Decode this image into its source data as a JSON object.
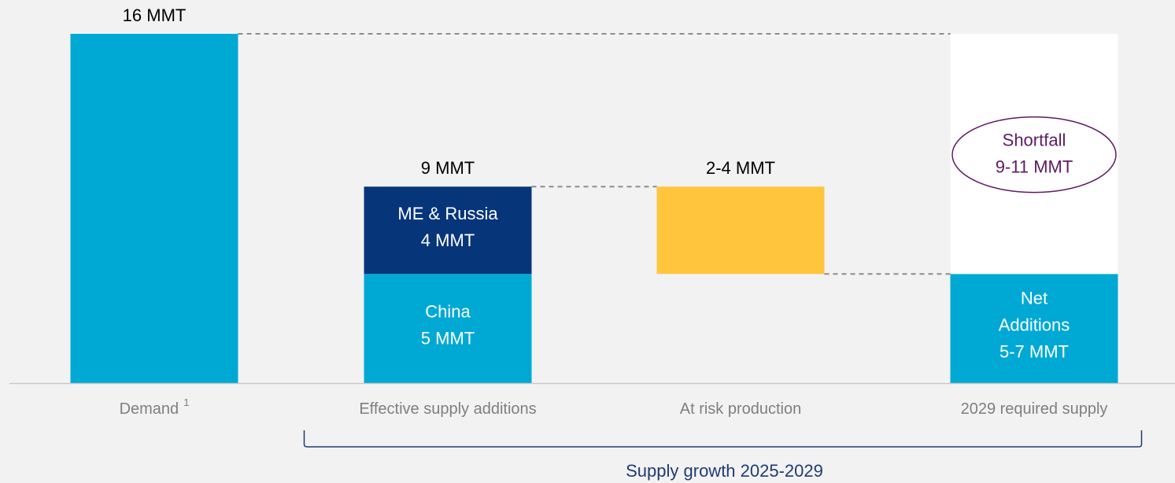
{
  "chart_data": {
    "type": "waterfall",
    "categories": [
      "Demand",
      "Effective supply additions",
      "At risk production",
      "2029 required supply"
    ],
    "footnote": "1",
    "bars": [
      {
        "start": "zero",
        "total_label": "16 MMT",
        "segments": [
          {
            "value": 16,
            "color": "#00a9d4"
          }
        ]
      },
      {
        "start": "zero",
        "total_label": "9 MMT",
        "segments": [
          {
            "value": 5,
            "color": "#00a9d4",
            "label": [
              "China",
              "5 MMT"
            ]
          },
          {
            "value": 4,
            "color": "#06357a",
            "label": [
              "ME & Russia",
              "4 MMT"
            ]
          }
        ]
      },
      {
        "start": "previous",
        "total_label": "2-4 MMT",
        "segments": [
          {
            "value": -4,
            "color": "#ffc53d"
          }
        ]
      },
      {
        "start": "zero",
        "segments": [
          {
            "value": 5,
            "color": "#00a9d4",
            "label": [
              "Net",
              "Additions",
              "5-7 MMT"
            ]
          },
          {
            "value": 11,
            "color": "#ffffff",
            "annotation": [
              "Shortfall",
              "9-11 MMT"
            ],
            "annotation_color": "#5e1a63"
          }
        ]
      }
    ],
    "connectors": [
      [
        0,
        3
      ],
      [
        1,
        2
      ],
      [
        2,
        3
      ]
    ],
    "bracket": {
      "label": "Supply growth 2025-2029",
      "from": 1,
      "to": 3
    }
  }
}
